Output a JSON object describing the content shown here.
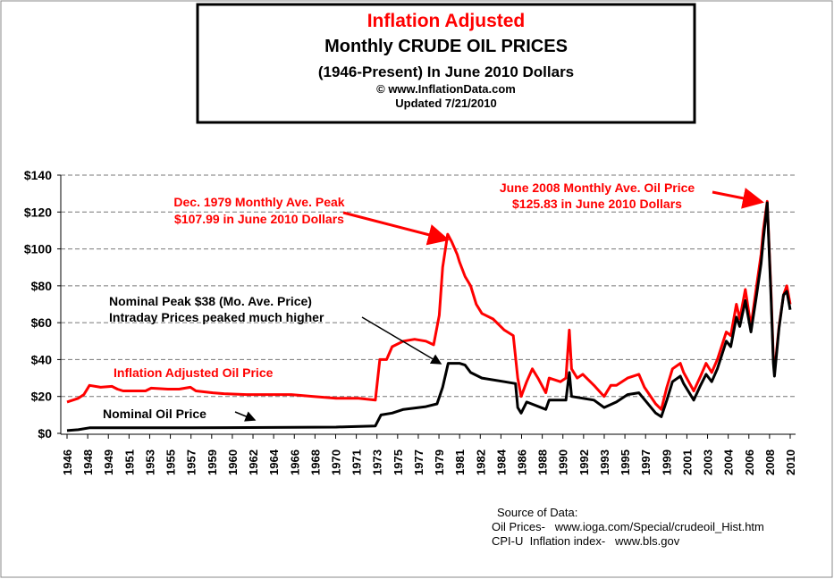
{
  "chart_data": {
    "type": "line",
    "title_line1": "Inflation Adjusted",
    "title_line2": "Monthly CRUDE OIL PRICES",
    "title_line3": "(1946-Present) In June 2010 Dollars",
    "title_line4": "© www.InflationData.com",
    "title_line5": "Updated 7/21/2010",
    "ylim": [
      0,
      140
    ],
    "yticks": [
      "$0",
      "$20",
      "$40",
      "$60",
      "$80",
      "$100",
      "$120",
      "$140"
    ],
    "ytick_values": [
      0,
      20,
      40,
      60,
      80,
      100,
      120,
      140
    ],
    "xlim": [
      1946,
      2010.5
    ],
    "xtick_labels": [
      "1946",
      "1948",
      "1949",
      "1951",
      "1953",
      "1955",
      "1957",
      "1959",
      "1960",
      "1962",
      "1964",
      "1966",
      "1968",
      "1970",
      "1971",
      "1973",
      "1975",
      "1977",
      "1979",
      "1981",
      "1982",
      "1984",
      "1986",
      "1988",
      "1990",
      "1992",
      "1993",
      "1995",
      "1997",
      "1999",
      "2001",
      "2003",
      "2004",
      "2006",
      "2008",
      "2010"
    ],
    "grid": "horizontal dashed",
    "colors": {
      "adjusted": "#ff0000",
      "nominal": "#000000",
      "annotation_red": "#ff0000"
    },
    "series": [
      {
        "name": "Inflation Adjusted Oil Price",
        "x": [
          1946,
          1947,
          1947.5,
          1948,
          1949,
          1950,
          1950.5,
          1951,
          1953,
          1953.5,
          1955,
          1956,
          1957,
          1957.5,
          1959,
          1960,
          1962,
          1964,
          1966,
          1968,
          1970,
          1972,
          1973.5,
          1973.9,
          1974.5,
          1975,
          1976,
          1977,
          1978,
          1978.7,
          1979.2,
          1979.5,
          1979.95,
          1980.3,
          1980.8,
          1981,
          1981.5,
          1982,
          1982.5,
          1983,
          1984,
          1985,
          1985.8,
          1986.2,
          1986.5,
          1987,
          1987.5,
          1988,
          1988.7,
          1989,
          1990,
          1990.5,
          1990.8,
          1991,
          1991.5,
          1992,
          1993,
          1993.9,
          1994.5,
          1995,
          1996,
          1997,
          1997.5,
          1998.5,
          1999,
          1999.5,
          2000,
          2000.7,
          2001,
          2001.9,
          2002.5,
          2003,
          2003.5,
          2004,
          2004.8,
          2005.2,
          2005.7,
          2006,
          2006.5,
          2007,
          2007.5,
          2007.9,
          2008.1,
          2008.45,
          2008.8,
          2009,
          2009.1,
          2009.5,
          2009.9,
          2010.2,
          2010.5
        ],
        "values": [
          17,
          19,
          21,
          26,
          25,
          25.5,
          24,
          23,
          23,
          24.5,
          24,
          24,
          25,
          23,
          22,
          21.5,
          21,
          21,
          21,
          20,
          19,
          19,
          18,
          40,
          40,
          47,
          50,
          51,
          50,
          48,
          64,
          90,
          107.99,
          104,
          97,
          93,
          85,
          80,
          70,
          65,
          62,
          56,
          53,
          30,
          20,
          28,
          35,
          30,
          22,
          30,
          28,
          30,
          56,
          35,
          30,
          32,
          26,
          20,
          26,
          26,
          30,
          32,
          25,
          16,
          13,
          25,
          35,
          38,
          33,
          23,
          31,
          38,
          33,
          40,
          55,
          53,
          70,
          62,
          78,
          58,
          80,
          97,
          110,
          125.83,
          75,
          40,
          33,
          58,
          75,
          80,
          70
        ]
      },
      {
        "name": "Nominal Oil Price",
        "x": [
          1946,
          1947,
          1948,
          1957,
          1970,
          1971,
          1973.5,
          1974,
          1975,
          1976,
          1978,
          1979,
          1979.5,
          1980,
          1981,
          1981.5,
          1982,
          1983,
          1985,
          1986,
          1986.2,
          1986.5,
          1987,
          1988.7,
          1989,
          1990.5,
          1990.8,
          1991,
          1993,
          1993.9,
          1995,
          1996,
          1997,
          1998.5,
          1999,
          1999.5,
          2000,
          2000.7,
          2001,
          2001.9,
          2002.5,
          2003,
          2003.5,
          2004,
          2004.8,
          2005.2,
          2005.7,
          2006,
          2006.5,
          2007,
          2007.5,
          2007.9,
          2008.1,
          2008.45,
          2008.8,
          2009,
          2009.1,
          2009.5,
          2009.9,
          2010.2,
          2010.5
        ],
        "values": [
          1.5,
          2,
          3,
          3,
          3.4,
          3.6,
          4,
          10,
          11,
          13,
          14.5,
          16,
          25,
          38,
          38,
          37,
          33,
          30,
          28,
          27,
          14,
          11,
          17,
          13,
          18,
          18,
          33,
          20,
          18,
          14,
          17,
          21,
          22,
          11,
          9,
          18,
          28,
          31,
          27,
          18,
          26,
          32,
          28,
          35,
          50,
          47,
          63,
          58,
          72,
          55,
          75,
          92,
          105,
          125,
          72,
          38,
          31,
          57,
          75,
          77,
          67
        ]
      }
    ],
    "annotations": {
      "peak1979_l1": "Dec. 1979 Monthly Ave. Peak",
      "peak1979_l2": "$107.99 in June 2010 Dollars",
      "peak2008_l1": "June 2008 Monthly Ave. Oil  Price",
      "peak2008_l2": "$125.83 in June 2010 Dollars",
      "nominal_peak_l1": "Nominal Peak $38 (Mo. Ave. Price)",
      "nominal_peak_l2": "Intraday Prices peaked much higher",
      "adjusted_label": "Inflation Adjusted Oil Price",
      "nominal_label": "Nominal Oil Price"
    },
    "source": {
      "heading": "Source of Data:",
      "line1": "Oil Prices-   www.ioga.com/Special/crudeoil_Hist.htm",
      "line2": "CPI-U  Inflation index-   www.bls.gov"
    }
  }
}
